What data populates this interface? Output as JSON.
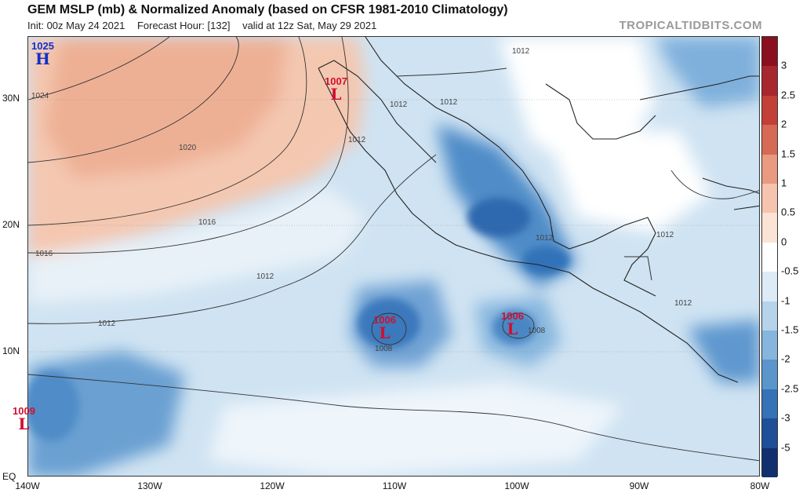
{
  "header": {
    "title": "GEM MSLP (mb) & Normalized Anomaly (based on CFSR 1981-2010 Climatology)",
    "init": "Init: 00z May 24 2021",
    "forecast_hour": "Forecast Hour: [132]",
    "valid": "valid at 12z Sat, May 29 2021",
    "brand": "TROPICALTIDBITS.COM"
  },
  "axes": {
    "y_labels": [
      "30N",
      "20N",
      "10N",
      "EQ"
    ],
    "x_labels": [
      "140W",
      "130W",
      "120W",
      "110W",
      "100W",
      "90W",
      "80W"
    ]
  },
  "colorbar": {
    "ticks": [
      "3",
      "2.5",
      "2",
      "1.5",
      "1",
      "0.5",
      "0",
      "-0.5",
      "-1",
      "-1.5",
      "-2",
      "-2.5",
      "-3",
      "-5"
    ],
    "colors": [
      "#8a1020",
      "#a8262e",
      "#c24038",
      "#d66a55",
      "#e99a80",
      "#f6c4ae",
      "#fbe3d6",
      "#ffffff",
      "#dcebf6",
      "#b6d3ec",
      "#86b6de",
      "#5a95cc",
      "#3572b6",
      "#1e4f98",
      "#12306e"
    ]
  },
  "pressure_centers": [
    {
      "type": "H",
      "value": "1025"
    },
    {
      "type": "L",
      "value": "1007"
    },
    {
      "type": "L",
      "value": "1006"
    },
    {
      "type": "L",
      "value": "1006"
    },
    {
      "type": "L",
      "value": "1009"
    }
  ],
  "isobar_labels": [
    "1024",
    "1020",
    "1016",
    "1016",
    "1012",
    "1012",
    "1012",
    "1012",
    "1012",
    "1012",
    "1012",
    "1012",
    "1012",
    "1008",
    "1008"
  ]
}
